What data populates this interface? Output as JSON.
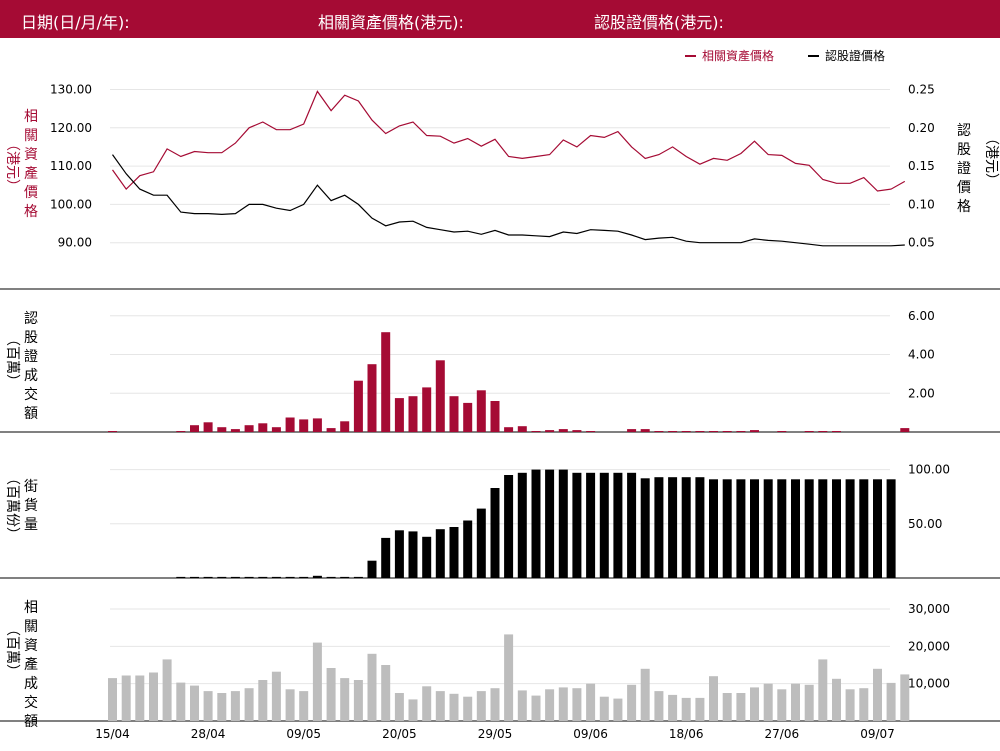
{
  "header": {
    "date_label": "日期(日/月/年):",
    "underlying_label": "相關資產價格(港元):",
    "warrant_label": "認股證價格(港元):"
  },
  "colors": {
    "header_bg": "#a50b34",
    "underlying": "#a50b34",
    "warrant": "#000000",
    "turnover_underlying": "#bdbdbd"
  },
  "x_ticks": [
    {
      "label": "15/04",
      "i": 0
    },
    {
      "label": "28/04",
      "i": 7
    },
    {
      "label": "09/05",
      "i": 14
    },
    {
      "label": "20/05",
      "i": 21
    },
    {
      "label": "29/05",
      "i": 28
    },
    {
      "label": "09/06",
      "i": 35
    },
    {
      "label": "18/06",
      "i": 42
    },
    {
      "label": "27/06",
      "i": 49
    },
    {
      "label": "09/07",
      "i": 56
    }
  ],
  "chart_data": [
    {
      "type": "line",
      "legend": [
        "相關資產價格",
        "認股證價格"
      ],
      "left_axis": {
        "label": "相關資產價格（港元）",
        "ticks": [
          "90.00",
          "100.00",
          "110.00",
          "120.00",
          "130.00"
        ],
        "ylim": [
          80,
          133
        ]
      },
      "right_axis": {
        "label": "認股證價格（港元）",
        "ticks": [
          "0.05",
          "0.10",
          "0.15",
          "0.20",
          "0.25"
        ],
        "ylim": [
          0,
          0.265
        ]
      },
      "series": [
        {
          "name": "相關資產價格",
          "axis": "left",
          "values": [
            109,
            104,
            107.5,
            108.5,
            114.5,
            112.5,
            113.8,
            113.5,
            113.5,
            116,
            120,
            121.5,
            119.5,
            119.5,
            121,
            129.5,
            124.5,
            128.5,
            127,
            122,
            118.5,
            120.5,
            121.5,
            118,
            117.8,
            116,
            117.2,
            115.2,
            117,
            112.5,
            112,
            112.5,
            113,
            116.8,
            115,
            118,
            117.5,
            119,
            115,
            112,
            113,
            115,
            112.5,
            110.5,
            112,
            111.5,
            113.3,
            116.5,
            113,
            112.8,
            110.7,
            110.2,
            106.5,
            105.5,
            105.5,
            107,
            103.5,
            104,
            106
          ]
        },
        {
          "name": "認股證價格",
          "axis": "right",
          "values": [
            0.165,
            0.14,
            0.12,
            0.112,
            0.112,
            0.09,
            0.088,
            0.088,
            0.087,
            0.088,
            0.1,
            0.1,
            0.095,
            0.092,
            0.1,
            0.125,
            0.105,
            0.112,
            0.1,
            0.082,
            0.072,
            0.077,
            0.078,
            0.07,
            0.067,
            0.064,
            0.065,
            0.061,
            0.066,
            0.06,
            0.06,
            0.059,
            0.058,
            0.064,
            0.062,
            0.067,
            0.066,
            0.065,
            0.06,
            0.054,
            0.056,
            0.057,
            0.052,
            0.05,
            0.05,
            0.05,
            0.05,
            0.055,
            0.053,
            0.052,
            0.05,
            0.048,
            0.046,
            0.046,
            0.046,
            0.046,
            0.046,
            0.046,
            0.047
          ]
        }
      ]
    },
    {
      "type": "bar",
      "ylabel": "認股證成交額（百萬）",
      "ticks": [
        "2.00",
        "4.00",
        "6.00"
      ],
      "ylim": [
        0,
        6.4
      ],
      "values": [
        0.05,
        0,
        0,
        0,
        0,
        0.05,
        0.35,
        0.5,
        0.25,
        0.15,
        0.35,
        0.45,
        0.25,
        0.75,
        0.65,
        0.7,
        0.2,
        0.55,
        2.65,
        3.5,
        5.15,
        1.75,
        1.85,
        2.3,
        3.7,
        1.85,
        1.5,
        2.15,
        1.6,
        0.25,
        0.3,
        0.05,
        0.1,
        0.15,
        0.1,
        0.05,
        0,
        0,
        0.15,
        0.15,
        0.05,
        0.05,
        0.05,
        0.05,
        0.05,
        0.05,
        0.05,
        0.1,
        0,
        0.05,
        0,
        0.05,
        0.05,
        0.05,
        0,
        0,
        0,
        0,
        0.2
      ]
    },
    {
      "type": "bar",
      "ylabel": "街貨量（百萬份）",
      "ticks": [
        "50.00",
        "100.00"
      ],
      "ylim": [
        0,
        107
      ],
      "values": [
        0,
        0,
        0,
        0,
        0,
        1,
        1,
        1,
        1,
        1,
        1,
        1,
        1,
        1,
        1,
        2,
        1,
        1,
        1,
        16,
        37,
        44,
        43,
        38,
        45,
        47,
        53,
        64,
        83,
        95,
        97,
        100,
        100,
        100,
        97,
        97,
        97,
        97,
        97,
        92,
        93,
        93,
        93,
        93,
        91,
        91,
        91,
        91,
        91,
        91,
        91,
        91,
        91,
        91,
        91,
        91,
        91,
        91,
        0
      ]
    },
    {
      "type": "bar",
      "ylabel": "相關資產成交額（百萬）",
      "ticks": [
        "10,000",
        "20,000",
        "30,000"
      ],
      "ylim": [
        0,
        33500
      ],
      "values": [
        11500,
        12200,
        12200,
        13000,
        16500,
        10300,
        9500,
        8000,
        7500,
        8000,
        8800,
        11000,
        13200,
        8500,
        8000,
        21000,
        14200,
        11500,
        11000,
        18000,
        15000,
        7500,
        5800,
        9300,
        8000,
        7300,
        6500,
        8000,
        8800,
        23200,
        8200,
        6800,
        8500,
        9000,
        8800,
        10000,
        6500,
        6000,
        9700,
        14000,
        8000,
        7000,
        6200,
        6200,
        12000,
        7500,
        7500,
        9000,
        10000,
        8500,
        10000,
        9700,
        16500,
        11300,
        8500,
        8800,
        14000,
        10200,
        12500
      ]
    }
  ]
}
